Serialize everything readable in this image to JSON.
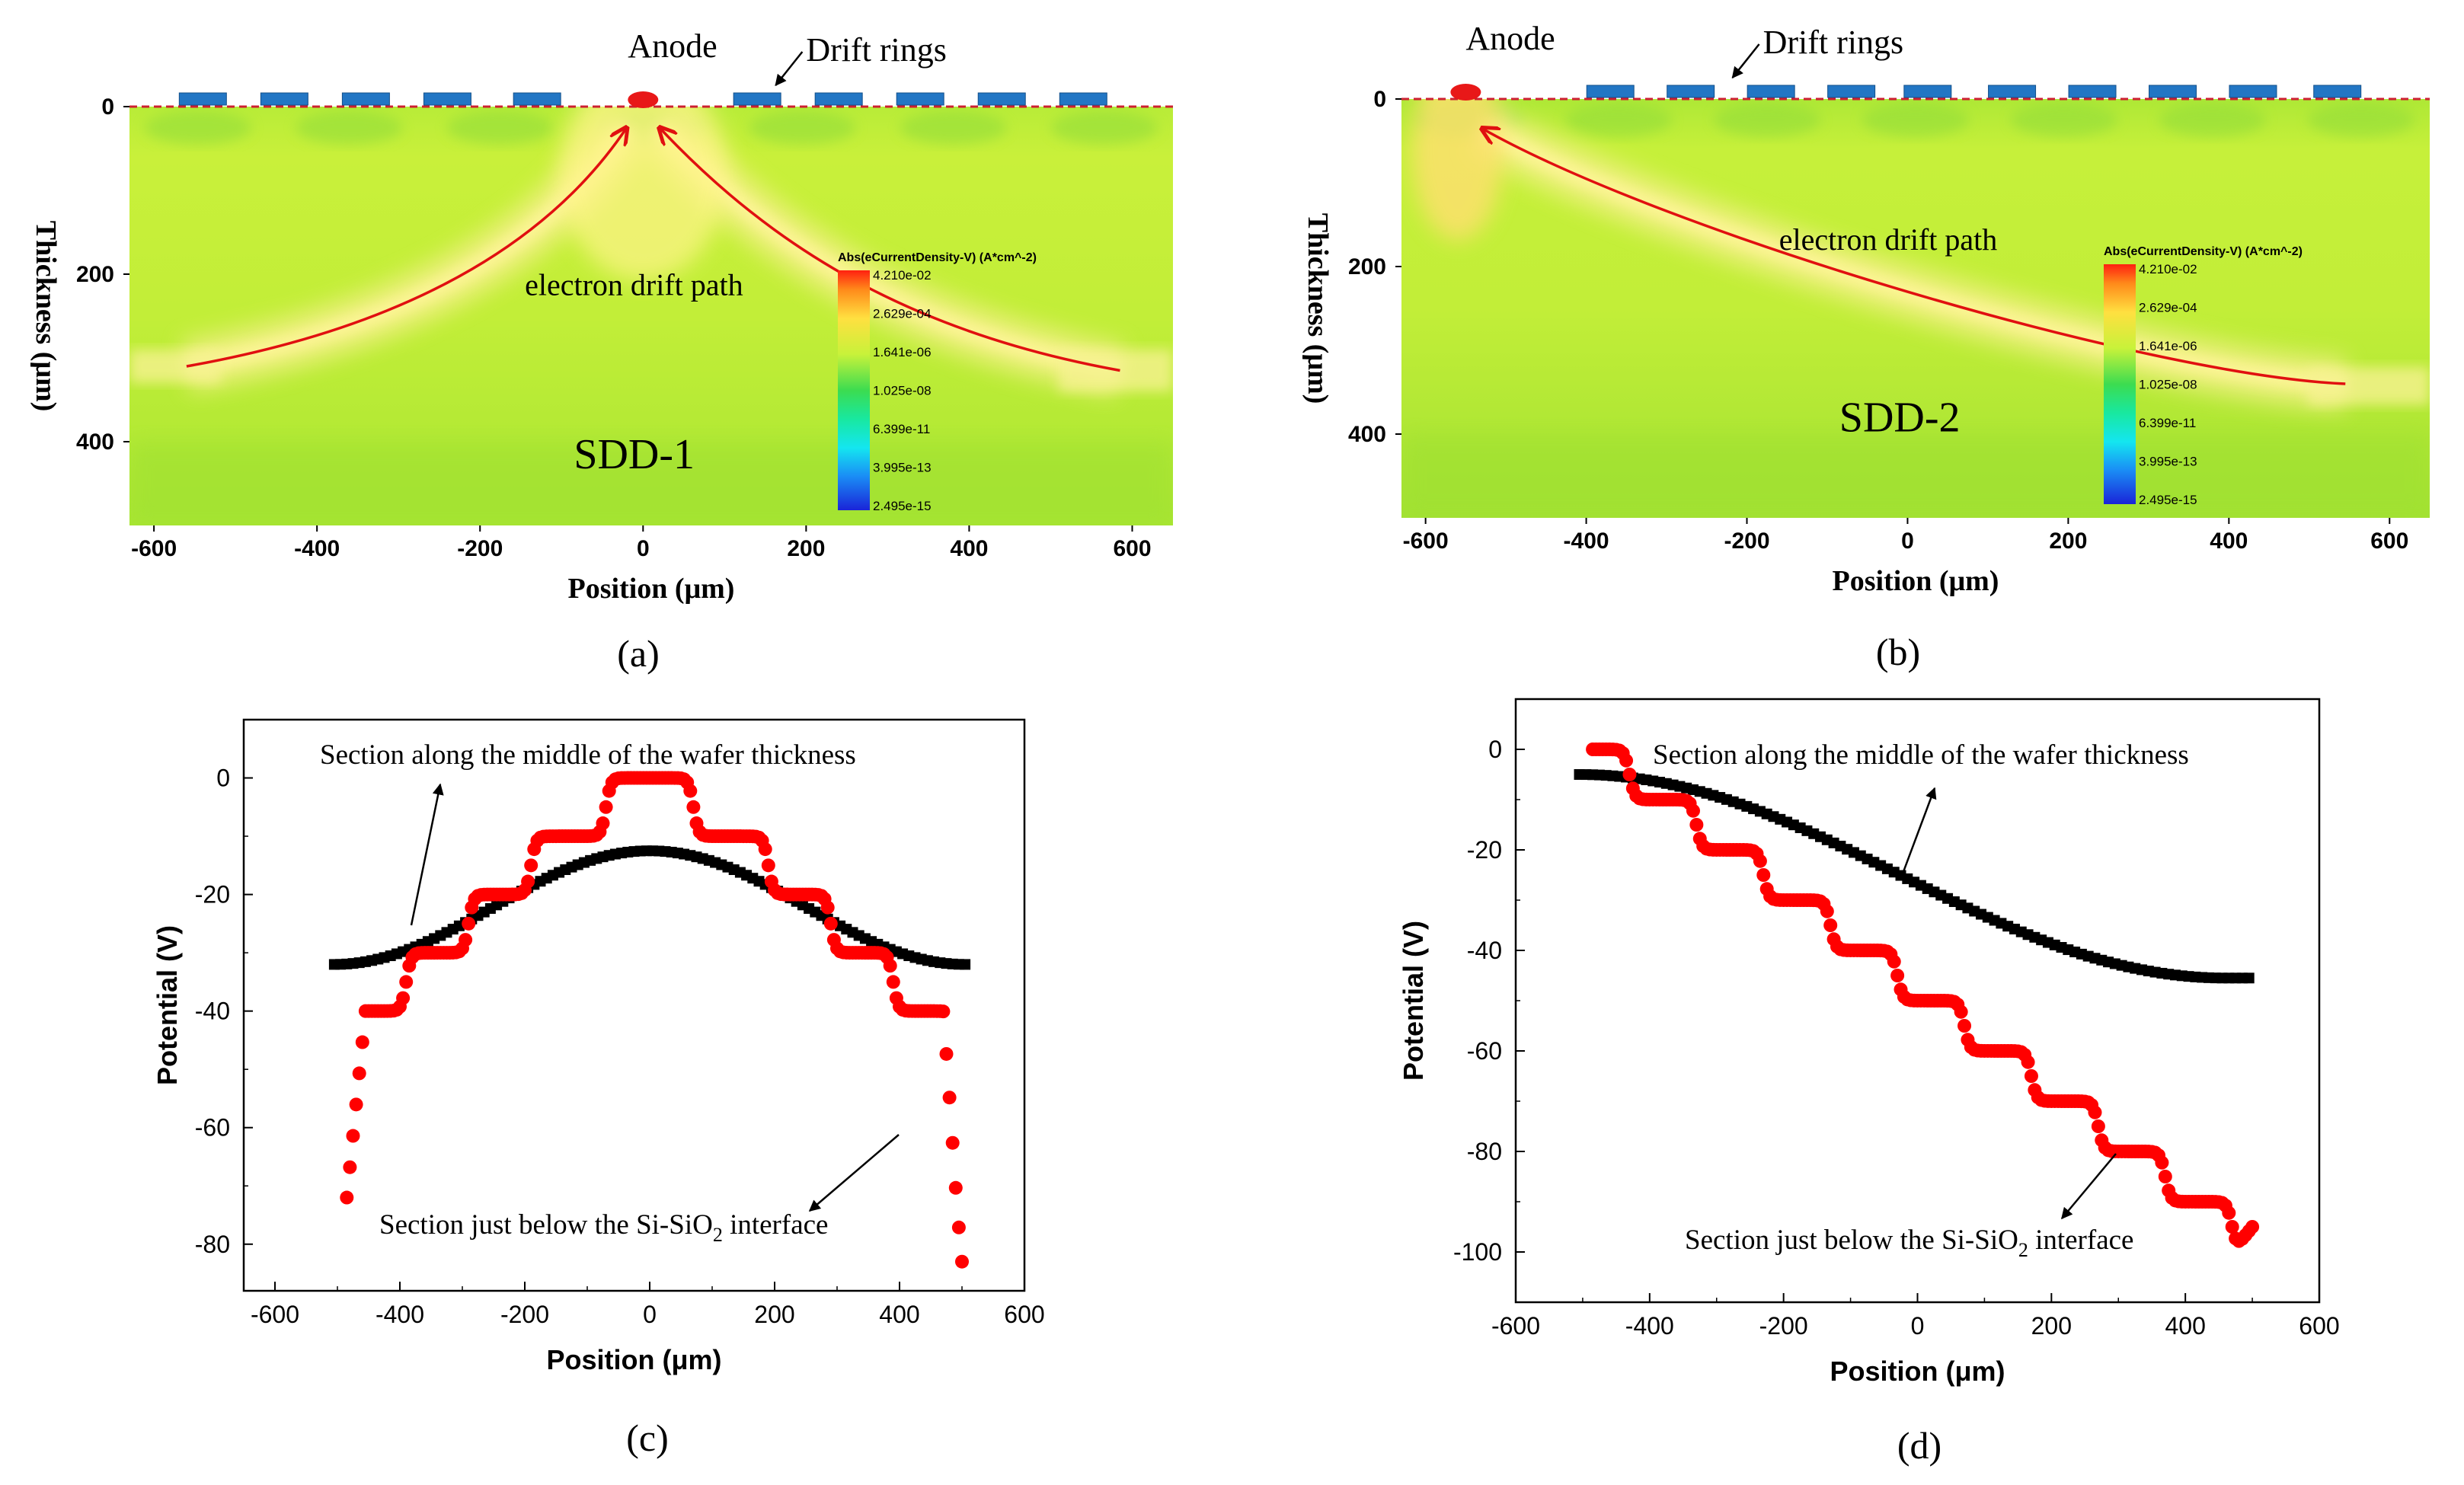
{
  "chart_data": [
    {
      "id": "a",
      "type": "heatmap",
      "panel_label": "(a)",
      "device_label": "SDD-1",
      "xlabel": "Position (μm)",
      "ylabel": "Thickness (μm)",
      "xlim": [
        -630,
        650
      ],
      "ylim": [
        0,
        500
      ],
      "x_ticks": [
        -600,
        -400,
        -200,
        0,
        200,
        400,
        600
      ],
      "y_ticks": [
        0,
        200,
        400
      ],
      "anode_label": "Anode",
      "drift_rings_label": "Drift rings",
      "path_label": "electron drift path",
      "anode_x": 0,
      "ring_centers": [
        -540,
        -440,
        -340,
        -240,
        -130,
        140,
        240,
        340,
        440,
        540
      ],
      "drift_paths": [
        {
          "name": "left",
          "points": [
            [
              -560,
              310
            ],
            [
              -300,
              265
            ],
            [
              -120,
              170
            ],
            [
              -20,
              25
            ]
          ]
        },
        {
          "name": "right",
          "points": [
            [
              585,
              315
            ],
            [
              330,
              270
            ],
            [
              160,
              170
            ],
            [
              20,
              25
            ]
          ]
        }
      ],
      "colorbar": {
        "title": "Abs(eCurrentDensity-V) (A*cm^-2)",
        "labels": [
          "4.210e-02",
          "2.629e-04",
          "1.641e-06",
          "1.025e-08",
          "6.399e-11",
          "3.995e-13",
          "2.495e-15"
        ]
      }
    },
    {
      "id": "b",
      "type": "heatmap",
      "panel_label": "(b)",
      "device_label": "SDD-2",
      "xlabel": "Position (μm)",
      "ylabel": "Thickness (μm)",
      "xlim": [
        -630,
        650
      ],
      "ylim": [
        0,
        500
      ],
      "x_ticks": [
        -600,
        -400,
        -200,
        0,
        200,
        400,
        600
      ],
      "y_ticks": [
        0,
        200,
        400
      ],
      "anode_label": "Anode",
      "drift_rings_label": "Drift rings",
      "path_label": "electron drift path",
      "anode_x": -550,
      "ring_centers": [
        -370,
        -270,
        -170,
        -70,
        25,
        130,
        230,
        330,
        430,
        535
      ],
      "drift_paths": [
        {
          "name": "main",
          "points": [
            [
              545,
              340
            ],
            [
              300,
              330
            ],
            [
              -300,
              160
            ],
            [
              -530,
              35
            ]
          ]
        }
      ],
      "colorbar": {
        "title": "Abs(eCurrentDensity-V) (A*cm^-2)",
        "labels": [
          "4.210e-02",
          "2.629e-04",
          "1.641e-06",
          "1.025e-08",
          "6.399e-11",
          "3.995e-13",
          "2.495e-15"
        ]
      }
    },
    {
      "id": "c",
      "type": "scatter",
      "panel_label": "(c)",
      "xlabel": "Position (μm)",
      "ylabel": "Potential (V)",
      "xlim": [
        -650,
        600
      ],
      "ylim": [
        -88,
        10
      ],
      "x_ticks": [
        -600,
        -400,
        -200,
        0,
        200,
        400,
        600
      ],
      "y_ticks": [
        0,
        -20,
        -40,
        -60,
        -80
      ],
      "series": [
        {
          "name": "Section along the middle of the wafer thickness",
          "color": "#000000",
          "marker": "square",
          "x_range": [
            -505,
            505
          ],
          "step": 10,
          "model": "cosine",
          "params": {
            "center": -12.5,
            "edge": -32,
            "half_width": 505
          }
        },
        {
          "name": "Section just below the Si-SiO2 interface",
          "color": "#ff0000",
          "marker": "circle",
          "x_range": [
            -485,
            500
          ],
          "step": 5,
          "model": "staircase",
          "params": {
            "start": 0,
            "step_height": 10,
            "period": 100,
            "plateau_offset": 50,
            "half_width": 16,
            "profile": "symmetric"
          },
          "overrides": [
            [
              -485,
              -72
            ],
            [
              500,
              -83
            ]
          ]
        }
      ],
      "annotations": {
        "top_text": "Section along the middle of the wafer thickness",
        "bottom_text_pre": "Section just below the Si-SiO",
        "bottom_text_sub": "2",
        "bottom_text_post": " interface"
      }
    },
    {
      "id": "d",
      "type": "scatter",
      "panel_label": "(d)",
      "xlabel": "Position (μm)",
      "ylabel": "Potential (V)",
      "xlim": [
        -600,
        600
      ],
      "ylim": [
        -110,
        10
      ],
      "x_ticks": [
        -600,
        -400,
        -200,
        0,
        200,
        400,
        600
      ],
      "y_ticks": [
        0,
        -20,
        -40,
        -60,
        -80,
        -100
      ],
      "series": [
        {
          "name": "Section along the middle of the wafer thickness",
          "color": "#000000",
          "marker": "square",
          "x_range": [
            -505,
            500
          ],
          "step": 10,
          "model": "cosine_ramp",
          "params": {
            "start": -5,
            "end": -45.5,
            "x0": -505,
            "x1": 460
          }
        },
        {
          "name": "Section just below the Si-SiO2 interface",
          "color": "#ff0000",
          "marker": "circle",
          "x_range": [
            -485,
            500
          ],
          "step": 5,
          "model": "staircase",
          "params": {
            "start": 0,
            "step_height": 10,
            "period": 100,
            "first_edge": -430,
            "half_width": 16,
            "profile": "monotonic"
          },
          "overrides": [
            [
              -485,
              0
            ],
            [
              500,
              -95
            ]
          ]
        }
      ],
      "annotations": {
        "top_text": "Section along the middle of the wafer thickness",
        "bottom_text_pre": "Section just below the Si-SiO",
        "bottom_text_sub": "2",
        "bottom_text_post": " interface"
      }
    }
  ]
}
